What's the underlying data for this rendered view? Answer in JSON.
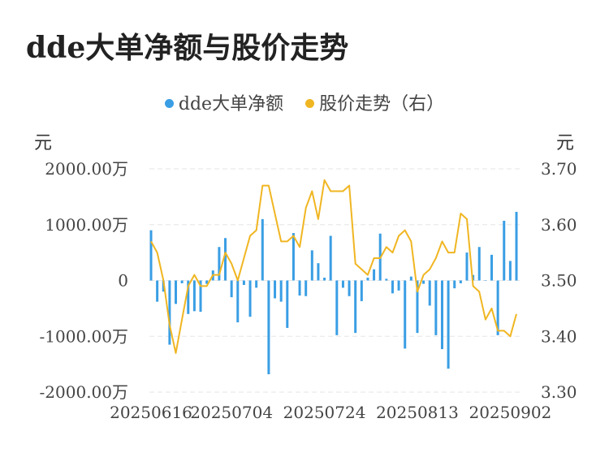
{
  "chart_data": {
    "type": "bar+line",
    "title": "dde大单净额与股价走势",
    "legend": [
      {
        "name": "dde大单净额",
        "color": "#3a9ee4"
      },
      {
        "name": "股价走势（右）",
        "color": "#f0b622"
      }
    ],
    "ylabel_left": "元",
    "ylabel_right": "元",
    "y_left_ticks": [
      "2000.00万",
      "1000.00万",
      "0",
      "-1000.00万",
      "-2000.00万"
    ],
    "y_left_range": [
      -2000,
      2000
    ],
    "y_right_ticks": [
      "3.70",
      "3.60",
      "3.50",
      "3.40",
      "3.30"
    ],
    "y_right_range": [
      3.3,
      3.7
    ],
    "x_tick_labels": [
      "20250616",
      "20250704",
      "20250724",
      "20250813",
      "20250902"
    ],
    "x_tick_indices": [
      0,
      13,
      28,
      43,
      58
    ],
    "bar_series": {
      "name": "dde大单净额",
      "unit": "万",
      "values": [
        900,
        -380,
        -200,
        -1150,
        -420,
        -50,
        -600,
        -550,
        -560,
        -60,
        180,
        600,
        760,
        -300,
        -750,
        -80,
        -650,
        -130,
        1100,
        -1680,
        -320,
        -380,
        -850,
        850,
        -270,
        -280,
        540,
        310,
        50,
        800,
        -980,
        -130,
        -280,
        -940,
        -370,
        50,
        200,
        840,
        30,
        -230,
        -180,
        -1220,
        70,
        -940,
        -60,
        -450,
        -980,
        -1230,
        -1580,
        -140,
        -50,
        500,
        100,
        600,
        0,
        460,
        -980,
        1070,
        350,
        1230
      ]
    },
    "line_series": {
      "name": "股价走势（右）",
      "values": [
        3.57,
        3.55,
        3.5,
        3.42,
        3.37,
        3.43,
        3.49,
        3.51,
        3.49,
        3.49,
        3.51,
        3.51,
        3.55,
        3.53,
        3.5,
        3.54,
        3.58,
        3.59,
        3.67,
        3.67,
        3.62,
        3.57,
        3.57,
        3.58,
        3.56,
        3.63,
        3.66,
        3.61,
        3.68,
        3.66,
        3.66,
        3.66,
        3.67,
        3.53,
        3.52,
        3.51,
        3.54,
        3.54,
        3.56,
        3.55,
        3.58,
        3.59,
        3.57,
        3.48,
        3.51,
        3.52,
        3.54,
        3.57,
        3.55,
        3.55,
        3.62,
        3.61,
        3.49,
        3.48,
        3.43,
        3.45,
        3.41,
        3.41,
        3.4,
        3.44
      ]
    },
    "grid": true
  }
}
